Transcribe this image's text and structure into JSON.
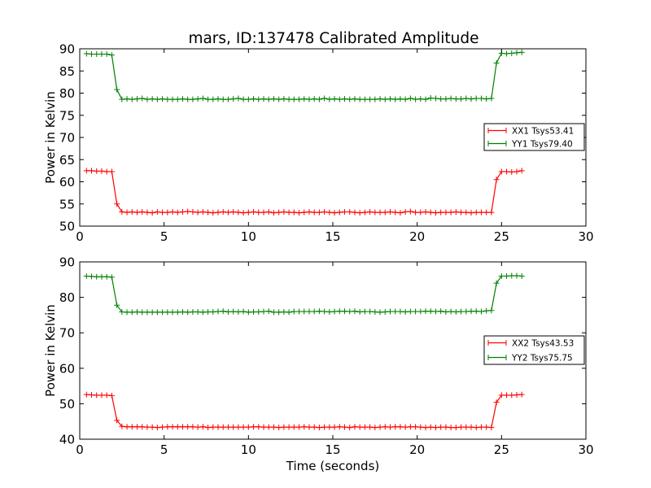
{
  "figure": {
    "title": "mars, ID:137478 Calibrated Amplitude"
  },
  "chart_data": [
    {
      "type": "line",
      "title": "mars, ID:137478 Calibrated Amplitude",
      "xlabel": "",
      "ylabel": "Power in Kelvin",
      "xlim": [
        0,
        30
      ],
      "ylim": [
        50,
        90
      ],
      "xticks": [
        0,
        5,
        10,
        15,
        20,
        25,
        30
      ],
      "yticks": [
        50,
        55,
        60,
        65,
        70,
        75,
        80,
        85,
        90
      ],
      "grid": false,
      "legend_position": "right",
      "series": [
        {
          "name": "XX1 Tsys53.41",
          "color": "#ff0000",
          "marker": "+",
          "x": [
            0.4,
            0.7,
            1.0,
            1.3,
            1.6,
            1.9,
            2.2,
            2.5,
            2.8,
            3.1,
            3.4,
            3.7,
            4.0,
            4.3,
            4.6,
            4.9,
            5.2,
            5.5,
            5.8,
            6.1,
            6.4,
            6.7,
            7.0,
            7.3,
            7.6,
            7.9,
            8.2,
            8.5,
            8.8,
            9.1,
            9.4,
            9.7,
            10.0,
            10.3,
            10.6,
            10.9,
            11.2,
            11.5,
            11.8,
            12.1,
            12.4,
            12.7,
            13.0,
            13.3,
            13.6,
            13.9,
            14.2,
            14.5,
            14.8,
            15.1,
            15.4,
            15.7,
            16.0,
            16.3,
            16.6,
            16.9,
            17.2,
            17.5,
            17.8,
            18.1,
            18.4,
            18.7,
            19.0,
            19.3,
            19.6,
            19.9,
            20.2,
            20.5,
            20.8,
            21.1,
            21.4,
            21.7,
            22.0,
            22.3,
            22.6,
            22.9,
            23.2,
            23.5,
            23.8,
            24.1,
            24.4,
            24.7,
            25.0,
            25.3,
            25.6,
            25.9,
            26.2
          ],
          "y": [
            62.5,
            62.5,
            62.4,
            62.4,
            62.3,
            62.3,
            55.0,
            53.2,
            53.1,
            53.2,
            53.1,
            53.2,
            53.1,
            53.0,
            53.2,
            53.1,
            53.1,
            53.2,
            53.1,
            53.2,
            53.3,
            53.2,
            53.1,
            53.2,
            53.1,
            53.0,
            53.1,
            53.2,
            53.1,
            53.2,
            53.1,
            53.0,
            53.1,
            53.2,
            53.1,
            53.1,
            53.2,
            53.0,
            53.1,
            53.2,
            53.1,
            53.1,
            53.0,
            53.1,
            53.2,
            53.1,
            53.1,
            53.2,
            53.1,
            53.0,
            53.1,
            53.2,
            53.2,
            53.1,
            53.0,
            53.1,
            53.2,
            53.1,
            53.1,
            53.1,
            53.2,
            53.1,
            53.0,
            53.2,
            53.3,
            53.1,
            53.1,
            53.2,
            53.1,
            53.0,
            53.1,
            53.1,
            53.1,
            53.2,
            53.1,
            53.1,
            53.0,
            53.1,
            53.1,
            53.1,
            53.1,
            60.5,
            62.3,
            62.3,
            62.2,
            62.3,
            62.5
          ]
        },
        {
          "name": "YY1 Tsys79.40",
          "color": "#008000",
          "marker": "+",
          "x": [
            0.4,
            0.7,
            1.0,
            1.3,
            1.6,
            1.9,
            2.2,
            2.5,
            2.8,
            3.1,
            3.4,
            3.7,
            4.0,
            4.3,
            4.6,
            4.9,
            5.2,
            5.5,
            5.8,
            6.1,
            6.4,
            6.7,
            7.0,
            7.3,
            7.6,
            7.9,
            8.2,
            8.5,
            8.8,
            9.1,
            9.4,
            9.7,
            10.0,
            10.3,
            10.6,
            10.9,
            11.2,
            11.5,
            11.8,
            12.1,
            12.4,
            12.7,
            13.0,
            13.3,
            13.6,
            13.9,
            14.2,
            14.5,
            14.8,
            15.1,
            15.4,
            15.7,
            16.0,
            16.3,
            16.6,
            16.9,
            17.2,
            17.5,
            17.8,
            18.1,
            18.4,
            18.7,
            19.0,
            19.3,
            19.6,
            19.9,
            20.2,
            20.5,
            20.8,
            21.1,
            21.4,
            21.7,
            22.0,
            22.3,
            22.6,
            22.9,
            23.2,
            23.5,
            23.8,
            24.1,
            24.4,
            24.7,
            25.0,
            25.3,
            25.6,
            25.9,
            26.2
          ],
          "y": [
            88.9,
            88.8,
            88.8,
            88.8,
            88.8,
            88.6,
            80.8,
            78.6,
            78.7,
            78.6,
            78.7,
            78.8,
            78.6,
            78.7,
            78.6,
            78.7,
            78.6,
            78.6,
            78.6,
            78.7,
            78.6,
            78.6,
            78.7,
            78.8,
            78.6,
            78.6,
            78.7,
            78.6,
            78.6,
            78.7,
            78.8,
            78.6,
            78.6,
            78.7,
            78.6,
            78.7,
            78.6,
            78.7,
            78.6,
            78.7,
            78.6,
            78.6,
            78.6,
            78.7,
            78.6,
            78.7,
            78.6,
            78.8,
            78.6,
            78.7,
            78.6,
            78.7,
            78.6,
            78.7,
            78.6,
            78.6,
            78.6,
            78.6,
            78.7,
            78.6,
            78.7,
            78.6,
            78.7,
            78.6,
            78.8,
            78.6,
            78.7,
            78.6,
            78.9,
            78.8,
            78.7,
            78.7,
            78.8,
            78.7,
            78.7,
            78.8,
            78.7,
            78.8,
            78.8,
            78.7,
            78.8,
            86.8,
            89.0,
            88.9,
            89.0,
            89.1,
            89.2
          ]
        }
      ]
    },
    {
      "type": "line",
      "title": "",
      "xlabel": "Time (seconds)",
      "ylabel": "Power in Kelvin",
      "xlim": [
        0,
        30
      ],
      "ylim": [
        40,
        90
      ],
      "xticks": [
        0,
        5,
        10,
        15,
        20,
        25,
        30
      ],
      "yticks": [
        40,
        50,
        60,
        70,
        80,
        90
      ],
      "grid": false,
      "legend_position": "right",
      "series": [
        {
          "name": "XX2 Tsys43.53",
          "color": "#ff0000",
          "marker": "+",
          "x": [
            0.4,
            0.7,
            1.0,
            1.3,
            1.6,
            1.9,
            2.2,
            2.5,
            2.8,
            3.1,
            3.4,
            3.7,
            4.0,
            4.3,
            4.6,
            4.9,
            5.2,
            5.5,
            5.8,
            6.1,
            6.4,
            6.7,
            7.0,
            7.3,
            7.6,
            7.9,
            8.2,
            8.5,
            8.8,
            9.1,
            9.4,
            9.7,
            10.0,
            10.3,
            10.6,
            10.9,
            11.2,
            11.5,
            11.8,
            12.1,
            12.4,
            12.7,
            13.0,
            13.3,
            13.6,
            13.9,
            14.2,
            14.5,
            14.8,
            15.1,
            15.4,
            15.7,
            16.0,
            16.3,
            16.6,
            16.9,
            17.2,
            17.5,
            17.8,
            18.1,
            18.4,
            18.7,
            19.0,
            19.3,
            19.6,
            19.9,
            20.2,
            20.5,
            20.8,
            21.1,
            21.4,
            21.7,
            22.0,
            22.3,
            22.6,
            22.9,
            23.2,
            23.5,
            23.8,
            24.1,
            24.4,
            24.7,
            25.0,
            25.3,
            25.6,
            25.9,
            26.2
          ],
          "y": [
            52.6,
            52.5,
            52.4,
            52.4,
            52.4,
            52.3,
            45.3,
            43.6,
            43.5,
            43.5,
            43.5,
            43.5,
            43.4,
            43.4,
            43.3,
            43.4,
            43.5,
            43.5,
            43.5,
            43.5,
            43.5,
            43.5,
            43.4,
            43.5,
            43.3,
            43.4,
            43.4,
            43.4,
            43.4,
            43.4,
            43.4,
            43.4,
            43.4,
            43.5,
            43.5,
            43.4,
            43.4,
            43.4,
            43.3,
            43.4,
            43.4,
            43.4,
            43.4,
            43.5,
            43.4,
            43.4,
            43.3,
            43.4,
            43.4,
            43.4,
            43.5,
            43.4,
            43.3,
            43.5,
            43.4,
            43.4,
            43.4,
            43.3,
            43.4,
            43.5,
            43.4,
            43.5,
            43.5,
            43.4,
            43.5,
            43.5,
            43.4,
            43.3,
            43.4,
            43.3,
            43.4,
            43.4,
            43.3,
            43.3,
            43.4,
            43.4,
            43.4,
            43.3,
            43.4,
            43.4,
            43.3,
            50.4,
            52.4,
            52.4,
            52.4,
            52.5,
            52.6
          ]
        },
        {
          "name": "YY2 Tsys75.75",
          "color": "#008000",
          "marker": "+",
          "x": [
            0.4,
            0.7,
            1.0,
            1.3,
            1.6,
            1.9,
            2.2,
            2.5,
            2.8,
            3.1,
            3.4,
            3.7,
            4.0,
            4.3,
            4.6,
            4.9,
            5.2,
            5.5,
            5.8,
            6.1,
            6.4,
            6.7,
            7.0,
            7.3,
            7.6,
            7.9,
            8.2,
            8.5,
            8.8,
            9.1,
            9.4,
            9.7,
            10.0,
            10.3,
            10.6,
            10.9,
            11.2,
            11.5,
            11.8,
            12.1,
            12.4,
            12.7,
            13.0,
            13.3,
            13.6,
            13.9,
            14.2,
            14.5,
            14.8,
            15.1,
            15.4,
            15.7,
            16.0,
            16.3,
            16.6,
            16.9,
            17.2,
            17.5,
            17.8,
            18.1,
            18.4,
            18.7,
            19.0,
            19.3,
            19.6,
            19.9,
            20.2,
            20.5,
            20.8,
            21.1,
            21.4,
            21.7,
            22.0,
            22.3,
            22.6,
            22.9,
            23.2,
            23.5,
            23.8,
            24.1,
            24.4,
            24.7,
            25.0,
            25.3,
            25.6,
            25.9,
            26.2
          ],
          "y": [
            86.0,
            85.9,
            85.8,
            85.8,
            85.8,
            85.7,
            77.8,
            75.9,
            75.8,
            75.8,
            75.9,
            75.8,
            75.8,
            75.8,
            75.8,
            75.8,
            75.8,
            75.8,
            75.8,
            75.9,
            75.8,
            75.9,
            75.9,
            75.8,
            75.9,
            75.9,
            76.0,
            76.1,
            75.9,
            76.0,
            75.9,
            76.0,
            75.8,
            75.9,
            75.9,
            76.0,
            76.1,
            75.8,
            75.8,
            75.9,
            75.8,
            76.0,
            76.0,
            76.0,
            76.0,
            76.0,
            76.1,
            76.0,
            75.9,
            76.0,
            76.1,
            76.1,
            76.0,
            76.1,
            75.9,
            76.0,
            76.0,
            75.9,
            75.8,
            75.9,
            76.0,
            76.0,
            76.0,
            75.9,
            76.0,
            76.0,
            76.0,
            76.1,
            76.1,
            76.0,
            76.1,
            75.9,
            76.0,
            75.9,
            76.0,
            76.0,
            76.1,
            76.1,
            76.0,
            76.2,
            76.3,
            84.0,
            86.0,
            86.0,
            86.1,
            86.1,
            86.0
          ]
        }
      ]
    }
  ]
}
